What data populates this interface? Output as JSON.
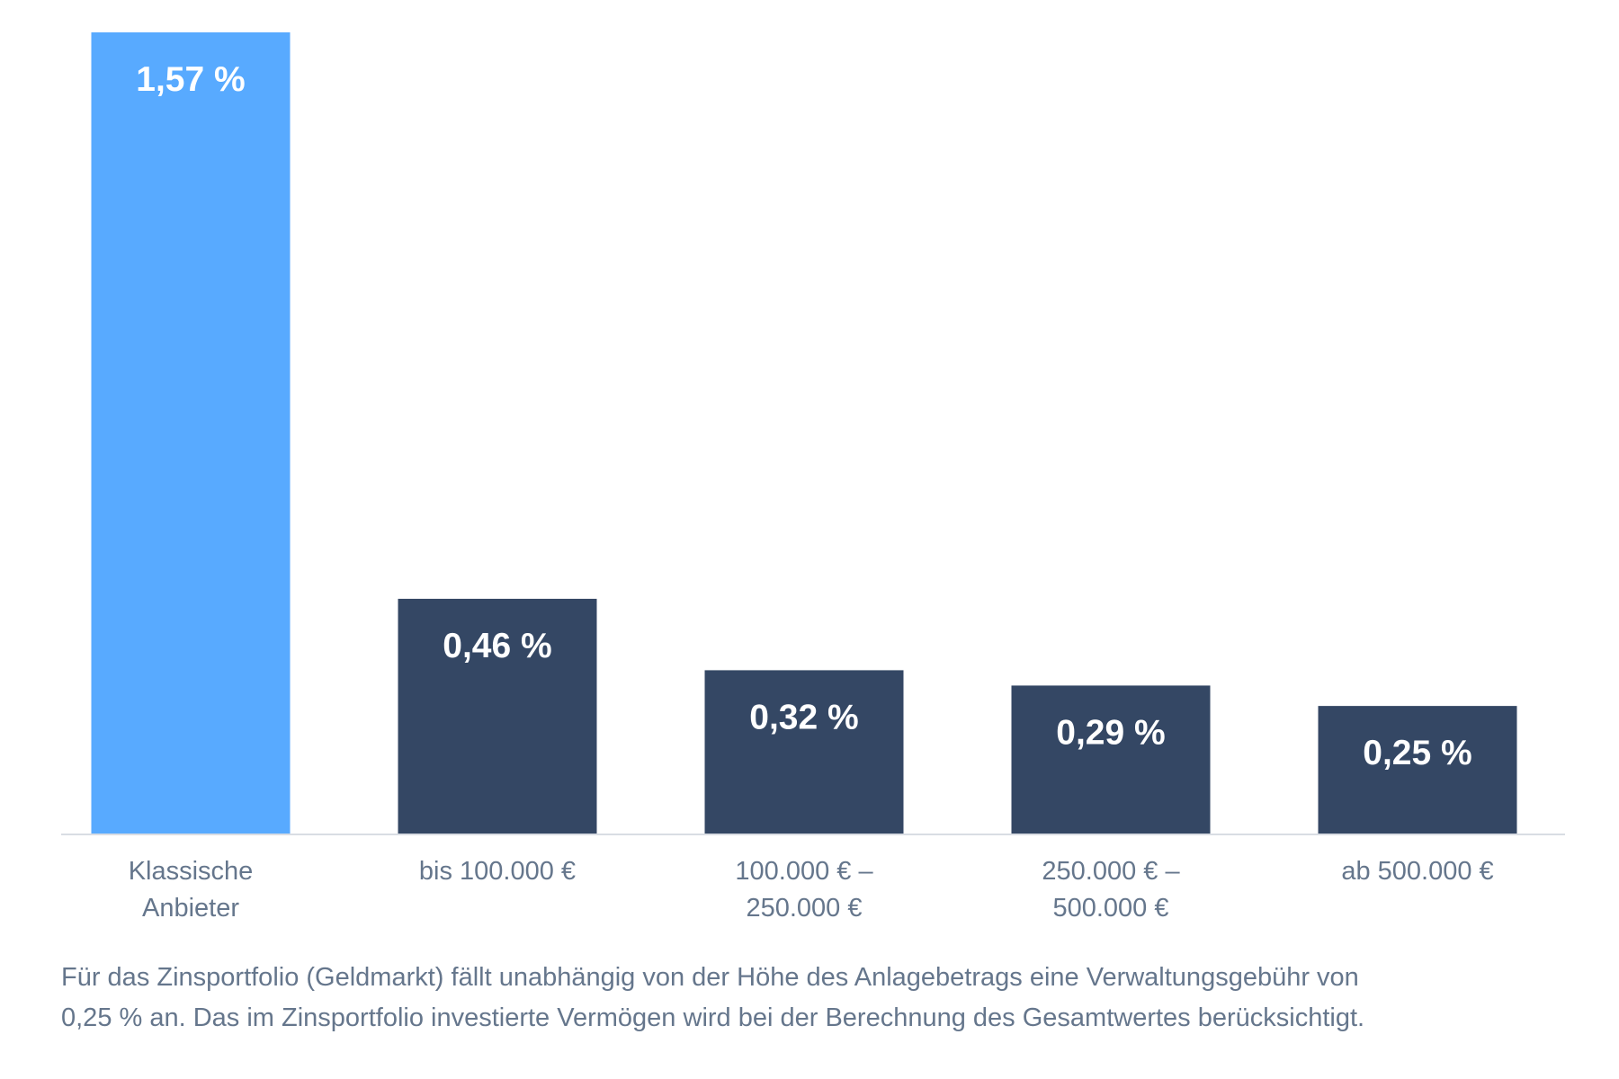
{
  "chart_data": {
    "type": "bar",
    "title": "",
    "xlabel": "",
    "ylabel": "",
    "ylim": [
      0,
      1.57
    ],
    "grid": false,
    "legend": "none",
    "categories": [
      [
        "Klassische",
        "Anbieter"
      ],
      [
        "bis 100.000 €"
      ],
      [
        "100.000 € –",
        "250.000 €"
      ],
      [
        "250.000 € –",
        "500.000 €"
      ],
      [
        "ab 500.000 €"
      ]
    ],
    "values": [
      1.57,
      0.46,
      0.32,
      0.29,
      0.25
    ],
    "value_labels": [
      "1,57 %",
      "0,46 %",
      "0,32 %",
      "0,29 %",
      "0,25 %"
    ],
    "colors": [
      "#58aaff",
      "#344764",
      "#344764",
      "#344764",
      "#344764"
    ],
    "axis_color": "#d9dde3"
  },
  "footnote": {
    "line1": "Für das Zinsportfolio (Geldmarkt) fällt unabhängig von der Höhe des Anlagebetrags eine Verwaltungsgebühr von",
    "line2": "0,25 % an. Das im Zinsportfolio investierte Vermögen wird bei der Berechnung des Gesamtwertes berücksichtigt."
  }
}
